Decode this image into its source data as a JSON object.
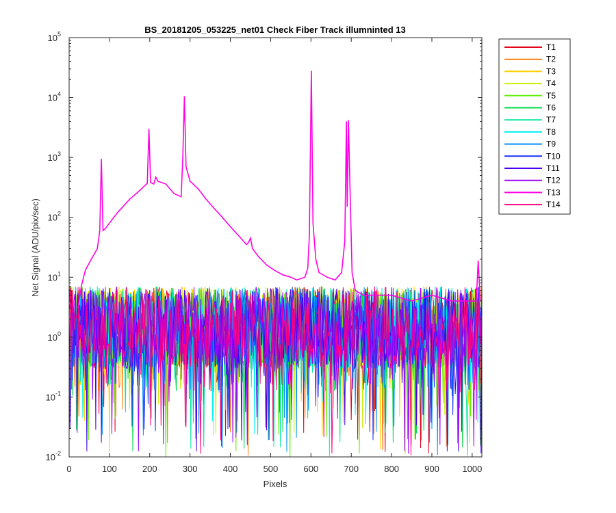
{
  "chart_data": {
    "type": "line",
    "title": "BS_20181205_053225_net01   Check Fiber     Track illumninted 13",
    "xlabel": "Pixels",
    "ylabel": "Net Signal (ADU/pix/sec)",
    "xlim": [
      0,
      1024
    ],
    "ylim": [
      0.01,
      100000
    ],
    "yscale": "log",
    "x_ticks": [
      0,
      100,
      200,
      300,
      400,
      500,
      600,
      700,
      800,
      900,
      1000
    ],
    "y_ticks": [
      {
        "value": 0.01,
        "base": "10",
        "exp": "-2"
      },
      {
        "value": 0.1,
        "base": "10",
        "exp": "-1"
      },
      {
        "value": 1,
        "base": "10",
        "exp": "0"
      },
      {
        "value": 10,
        "base": "10",
        "exp": "1"
      },
      {
        "value": 100,
        "base": "10",
        "exp": "2"
      },
      {
        "value": 1000,
        "base": "10",
        "exp": "3"
      },
      {
        "value": 10000,
        "base": "10",
        "exp": "4"
      },
      {
        "value": 100000,
        "base": "10",
        "exp": "5"
      }
    ],
    "grid": false,
    "legend_position": "outside-right",
    "series": [
      {
        "name": "T1",
        "color": "#e6001a"
      },
      {
        "name": "T2",
        "color": "#ff7f0e"
      },
      {
        "name": "T3",
        "color": "#ffd000"
      },
      {
        "name": "T4",
        "color": "#c8f000"
      },
      {
        "name": "T5",
        "color": "#5ef000"
      },
      {
        "name": "T6",
        "color": "#00d84a"
      },
      {
        "name": "T7",
        "color": "#00e8a0"
      },
      {
        "name": "T8",
        "color": "#00f0f0"
      },
      {
        "name": "T9",
        "color": "#0090ff"
      },
      {
        "name": "T10",
        "color": "#1430ff"
      },
      {
        "name": "T11",
        "color": "#4a00f0"
      },
      {
        "name": "T12",
        "color": "#a000ff"
      },
      {
        "name": "T13",
        "color": "#ff00e6",
        "points": [
          [
            22,
            3
          ],
          [
            30,
            7
          ],
          [
            40,
            13
          ],
          [
            55,
            20
          ],
          [
            70,
            30
          ],
          [
            76,
            60
          ],
          [
            80,
            950
          ],
          [
            84,
            60
          ],
          [
            90,
            65
          ],
          [
            100,
            80
          ],
          [
            120,
            120
          ],
          [
            150,
            200
          ],
          [
            175,
            280
          ],
          [
            190,
            350
          ],
          [
            194,
            370
          ],
          [
            198,
            3000
          ],
          [
            202,
            380
          ],
          [
            210,
            360
          ],
          [
            215,
            470
          ],
          [
            220,
            400
          ],
          [
            240,
            360
          ],
          [
            260,
            250
          ],
          [
            278,
            220
          ],
          [
            282,
            1000
          ],
          [
            286,
            10500
          ],
          [
            290,
            700
          ],
          [
            300,
            400
          ],
          [
            320,
            300
          ],
          [
            340,
            200
          ],
          [
            360,
            140
          ],
          [
            380,
            100
          ],
          [
            400,
            70
          ],
          [
            420,
            50
          ],
          [
            440,
            35
          ],
          [
            445,
            38
          ],
          [
            450,
            45
          ],
          [
            455,
            30
          ],
          [
            470,
            22
          ],
          [
            490,
            16
          ],
          [
            510,
            13
          ],
          [
            530,
            11
          ],
          [
            550,
            10
          ],
          [
            565,
            9
          ],
          [
            585,
            10
          ],
          [
            592,
            14
          ],
          [
            596,
            50
          ],
          [
            601,
            28000
          ],
          [
            605,
            80
          ],
          [
            612,
            20
          ],
          [
            620,
            12
          ],
          [
            640,
            10
          ],
          [
            660,
            9
          ],
          [
            676,
            12
          ],
          [
            684,
            40
          ],
          [
            688,
            4000
          ],
          [
            690,
            150
          ],
          [
            693,
            4200
          ],
          [
            697,
            300
          ],
          [
            702,
            12
          ],
          [
            710,
            6
          ],
          [
            730,
            5
          ],
          [
            760,
            5
          ],
          [
            800,
            5
          ],
          [
            850,
            4
          ],
          [
            900,
            5
          ],
          [
            950,
            4
          ],
          [
            1000,
            4
          ],
          [
            1010,
            4
          ],
          [
            1015,
            19
          ],
          [
            1020,
            4
          ]
        ]
      },
      {
        "name": "T14",
        "color": "#ff0080"
      }
    ],
    "noise_band": {
      "typical_low": 0.3,
      "typical_high": 7,
      "min": 0.01,
      "max": 9
    }
  }
}
